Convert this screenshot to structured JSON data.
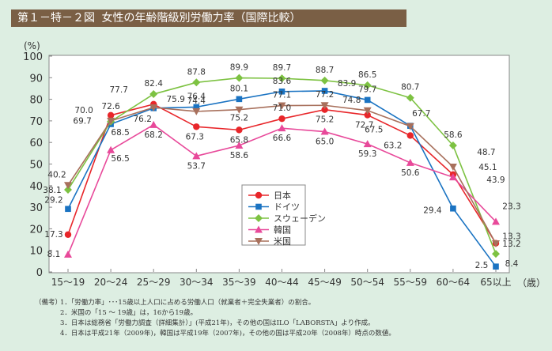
{
  "header": {
    "figure_no": "第１－特－２図",
    "title": "女性の年齢階級別労働力率（国際比較）"
  },
  "chart_data": {
    "type": "line",
    "title": "女性の年齢階級別労働力率（国際比較）",
    "ylabel": "(%)",
    "xlabel": "（歳）",
    "ylim": [
      0,
      100
    ],
    "yticks": [
      0,
      10,
      20,
      30,
      40,
      50,
      60,
      70,
      80,
      90,
      100
    ],
    "grid": false,
    "legend_position": "center-bottom",
    "categories": [
      "15～19",
      "20～24",
      "25～29",
      "30～34",
      "35～39",
      "40～44",
      "45～49",
      "50～54",
      "55～59",
      "60～64",
      "65以上"
    ],
    "series": [
      {
        "name": "日本",
        "color": "#e8262a",
        "marker": "circle",
        "values": [
          17.3,
          72.6,
          77.7,
          67.3,
          65.8,
          71.0,
          75.2,
          72.7,
          63.2,
          45.1,
          13.3
        ]
      },
      {
        "name": "ドイツ",
        "color": "#1a73c2",
        "marker": "square",
        "values": [
          29.2,
          68.5,
          75.9,
          76.4,
          80.1,
          83.6,
          83.9,
          79.7,
          67.7,
          29.4,
          2.5
        ]
      },
      {
        "name": "スウェーデン",
        "color": "#7dc242",
        "marker": "diamond",
        "values": [
          38.1,
          69.7,
          82.4,
          87.8,
          89.9,
          89.7,
          88.7,
          86.5,
          80.7,
          58.6,
          8.4
        ]
      },
      {
        "name": "韓国",
        "color": "#e8499a",
        "marker": "triangle-up",
        "values": [
          8.1,
          56.5,
          68.2,
          53.7,
          58.6,
          66.6,
          65.0,
          59.3,
          50.6,
          43.9,
          23.3
        ]
      },
      {
        "name": "米国",
        "color": "#a8705c",
        "marker": "triangle-down",
        "values": [
          40.2,
          70.0,
          76.2,
          74.4,
          75.2,
          77.1,
          77.2,
          74.8,
          67.5,
          48.7,
          13.2
        ]
      }
    ]
  },
  "notes": {
    "lead": "（備考）",
    "items": [
      "1．「労働力率」･･･15歳以上人口に占める労働人口（就業者＋完全失業者）の割合。",
      "2．米国の「15 ～ 19歳」は，16から19歳。",
      "3．日本は総務省「労働力調査（詳細集計）」(平成21年)，その他の国はILO「LABORSTA」より作成。",
      "4．日本は平成21年（2009年)，韓国は平成19年（2007年)，その他の国は平成20年（2008年）時点の数値。"
    ]
  }
}
